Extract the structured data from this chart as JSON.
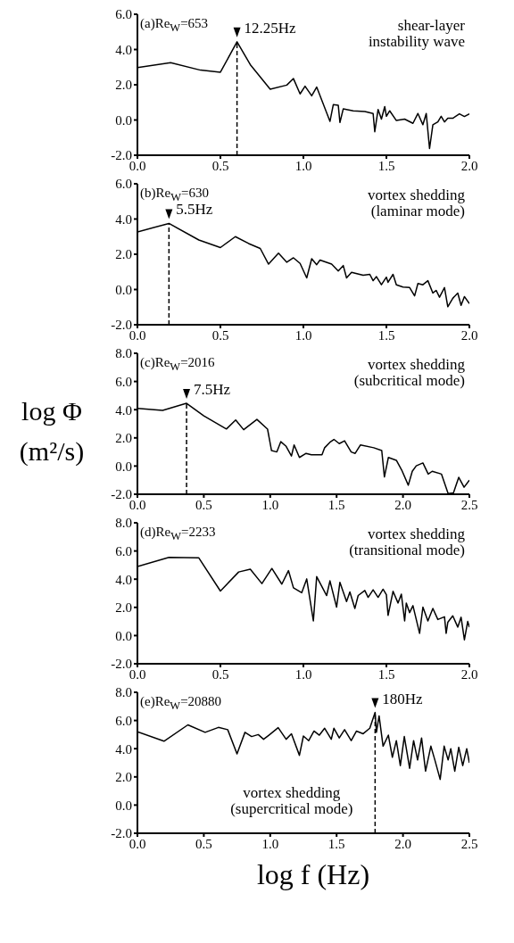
{
  "chart_data": [
    {
      "type": "line",
      "annotations": [
        "(a)Re$_{W}$=653",
        "shear-layer\ninstability wave",
        {
          "text": "12.25Hz",
          "x": 0.6,
          "y": 4.44
        }
      ],
      "ref_lines": [
        {
          "axis": "x",
          "value": 0.6,
          "line_style": "dashed"
        }
      ],
      "xlim": [
        0,
        2
      ],
      "xticks": [
        {
          "value": 0,
          "label": "0.0"
        },
        {
          "value": 0.5,
          "label": "0.5"
        },
        {
          "value": 1,
          "label": "1.0"
        },
        {
          "value": 1.5,
          "label": "1.5"
        },
        {
          "value": 2,
          "label": "2.0"
        }
      ],
      "ylim": [
        -2,
        6
      ],
      "yticks": [
        {
          "value": -2,
          "label": "-2.0"
        },
        {
          "value": 0,
          "label": "0.0"
        },
        {
          "value": 2,
          "label": "2.0"
        },
        {
          "value": 4,
          "label": "4.0"
        },
        {
          "value": 6,
          "label": "6.0"
        }
      ],
      "series": [
        {
          "color": "#000000",
          "x": [
            0,
            0.2,
            0.38,
            0.5,
            0.6,
            0.68,
            0.8,
            0.9,
            0.94,
            0.98,
            1.01,
            1.05,
            1.08,
            1.16,
            1.18,
            1.21,
            1.22,
            1.24,
            1.3,
            1.37,
            1.42,
            1.43,
            1.45,
            1.47,
            1.49,
            1.5,
            1.52,
            1.56,
            1.61,
            1.66,
            1.69,
            1.72,
            1.74,
            1.76,
            1.78,
            1.81,
            1.83,
            1.85,
            1.87,
            1.9,
            1.94,
            1.97,
            2.0
          ],
          "values": [
            2.98,
            3.25,
            2.83,
            2.71,
            4.44,
            3.14,
            1.75,
            1.98,
            2.35,
            1.48,
            1.92,
            1.37,
            1.87,
            -0.08,
            0.87,
            0.84,
            -0.14,
            0.63,
            0.52,
            0.48,
            0.37,
            -0.67,
            0.6,
            0.05,
            0.76,
            0.21,
            0.52,
            -0.03,
            0.05,
            -0.19,
            0.37,
            -0.27,
            0.37,
            -1.62,
            -0.27,
            -0.11,
            0.21,
            -0.11,
            0.1,
            0.1,
            0.35,
            0.2,
            0.35
          ]
        }
      ]
    },
    {
      "type": "line",
      "annotations": [
        "(b)Re$_{W}$=630",
        "vortex shedding\n(laminar mode)",
        {
          "text": "5.5Hz",
          "x": 0.19,
          "y": 3.75
        }
      ],
      "ref_lines": [
        {
          "axis": "x",
          "value": 0.19,
          "line_style": "dashed"
        }
      ],
      "xlim": [
        0,
        2
      ],
      "xticks": [
        {
          "value": 0,
          "label": "0.0"
        },
        {
          "value": 0.5,
          "label": "0.5"
        },
        {
          "value": 1,
          "label": "1.0"
        },
        {
          "value": 1.5,
          "label": "1.5"
        },
        {
          "value": 2,
          "label": "2.0"
        }
      ],
      "ylim": [
        -2,
        6
      ],
      "yticks": [
        {
          "value": -2,
          "label": "-2.0"
        },
        {
          "value": 0,
          "label": "0.0"
        },
        {
          "value": 2,
          "label": "2.0"
        },
        {
          "value": 4,
          "label": "4.0"
        },
        {
          "value": 6,
          "label": "6.0"
        }
      ],
      "series": [
        {
          "color": "#000000",
          "x": [
            0,
            0.19,
            0.37,
            0.5,
            0.59,
            0.67,
            0.74,
            0.79,
            0.85,
            0.9,
            0.94,
            0.98,
            1.02,
            1.05,
            1.08,
            1.1,
            1.17,
            1.21,
            1.24,
            1.26,
            1.29,
            1.36,
            1.4,
            1.42,
            1.44,
            1.47,
            1.5,
            1.51,
            1.54,
            1.56,
            1.6,
            1.64,
            1.67,
            1.69,
            1.72,
            1.75,
            1.78,
            1.8,
            1.82,
            1.85,
            1.87,
            1.9,
            1.93,
            1.95,
            1.97,
            2.0
          ],
          "values": [
            3.27,
            3.75,
            2.81,
            2.38,
            3.0,
            2.61,
            2.33,
            1.44,
            2.06,
            1.55,
            1.8,
            1.48,
            0.66,
            1.75,
            1.41,
            1.67,
            1.44,
            1.05,
            1.36,
            0.66,
            0.97,
            0.81,
            0.86,
            0.5,
            0.73,
            0.27,
            0.7,
            0.41,
            0.86,
            0.27,
            0.14,
            0.11,
            -0.36,
            0.34,
            0.27,
            0.5,
            -0.2,
            -0.05,
            -0.44,
            0.11,
            -0.98,
            -0.5,
            -0.2,
            -0.9,
            -0.4,
            -0.8
          ]
        }
      ]
    },
    {
      "type": "line",
      "ylabel": "log Φ\n(m²/s)",
      "annotations": [
        "(c)Re$_{W}$=2016",
        "vortex shedding\n(subcritical mode)",
        {
          "text": "7.5Hz",
          "x": 0.37,
          "y": 4.45
        }
      ],
      "ref_lines": [
        {
          "axis": "x",
          "value": 0.37,
          "line_style": "dashed"
        }
      ],
      "xlim": [
        0,
        2.5
      ],
      "xticks": [
        {
          "value": 0,
          "label": "0.0"
        },
        {
          "value": 0.5,
          "label": "0.5"
        },
        {
          "value": 1,
          "label": "1.0"
        },
        {
          "value": 1.5,
          "label": "1.5"
        },
        {
          "value": 2,
          "label": "2.0"
        },
        {
          "value": 2.5,
          "label": "2.5"
        }
      ],
      "ylim": [
        -2,
        8
      ],
      "yticks": [
        {
          "value": -2,
          "label": "-2.0"
        },
        {
          "value": 0,
          "label": "0.0"
        },
        {
          "value": 2,
          "label": "2.0"
        },
        {
          "value": 4,
          "label": "4.0"
        },
        {
          "value": 6,
          "label": "6.0"
        },
        {
          "value": 8,
          "label": "8.0"
        }
      ],
      "series": [
        {
          "color": "#000000",
          "x": [
            0,
            0.19,
            0.37,
            0.5,
            0.67,
            0.74,
            0.8,
            0.9,
            0.98,
            1.01,
            1.05,
            1.08,
            1.12,
            1.16,
            1.18,
            1.22,
            1.27,
            1.31,
            1.39,
            1.41,
            1.45,
            1.48,
            1.52,
            1.56,
            1.61,
            1.64,
            1.68,
            1.78,
            1.84,
            1.86,
            1.89,
            1.95,
            1.99,
            2.04,
            2.07,
            2.1,
            2.15,
            2.19,
            2.22,
            2.29,
            2.34,
            2.38,
            2.42,
            2.46,
            2.5
          ],
          "values": [
            4.09,
            3.95,
            4.45,
            3.56,
            2.63,
            3.27,
            2.58,
            3.31,
            2.62,
            1.1,
            1.0,
            1.73,
            1.4,
            0.71,
            1.5,
            0.61,
            0.9,
            0.8,
            0.8,
            1.3,
            1.69,
            1.89,
            1.59,
            1.79,
            1.0,
            0.9,
            1.5,
            1.3,
            1.1,
            -0.77,
            0.61,
            0.41,
            -0.28,
            -1.36,
            -0.37,
            0.02,
            0.22,
            -0.57,
            -0.37,
            -0.57,
            -1.95,
            -1.9,
            -0.8,
            -1.5,
            -1.0
          ]
        }
      ]
    },
    {
      "type": "line",
      "annotations": [
        "(d)Re$_{W}$=2233",
        "vortex shedding\n(transitional mode)"
      ],
      "xlim": [
        0,
        2
      ],
      "xticks": [
        {
          "value": 0,
          "label": "0.0"
        },
        {
          "value": 0.5,
          "label": "0.5"
        },
        {
          "value": 1,
          "label": "1.0"
        },
        {
          "value": 1.5,
          "label": "1.5"
        },
        {
          "value": 2,
          "label": "2.0"
        }
      ],
      "ylim": [
        -2,
        8
      ],
      "yticks": [
        {
          "value": -2,
          "label": "-2.0"
        },
        {
          "value": 0,
          "label": "0.0"
        },
        {
          "value": 2,
          "label": "2.0"
        },
        {
          "value": 4,
          "label": "4.0"
        },
        {
          "value": 6,
          "label": "6.0"
        },
        {
          "value": 8,
          "label": "8.0"
        }
      ],
      "series": [
        {
          "color": "#000000",
          "x": [
            0,
            0.19,
            0.37,
            0.5,
            0.61,
            0.68,
            0.75,
            0.81,
            0.87,
            0.91,
            0.94,
            0.99,
            1.02,
            1.06,
            1.08,
            1.14,
            1.16,
            1.2,
            1.22,
            1.26,
            1.28,
            1.31,
            1.33,
            1.37,
            1.39,
            1.42,
            1.45,
            1.48,
            1.5,
            1.51,
            1.54,
            1.57,
            1.59,
            1.61,
            1.62,
            1.64,
            1.66,
            1.7,
            1.72,
            1.75,
            1.78,
            1.81,
            1.85,
            1.86,
            1.87,
            1.9,
            1.93,
            1.95,
            1.97,
            1.99,
            2.0
          ],
          "values": [
            4.9,
            5.55,
            5.51,
            3.16,
            4.51,
            4.71,
            3.69,
            4.76,
            3.65,
            4.61,
            3.39,
            3.04,
            4.02,
            1.04,
            4.18,
            2.84,
            3.88,
            2.02,
            3.78,
            2.41,
            3.1,
            1.92,
            2.84,
            3.2,
            2.71,
            3.25,
            2.71,
            3.29,
            2.9,
            1.43,
            3.14,
            2.31,
            2.94,
            1.04,
            2.31,
            1.63,
            2.12,
            0.16,
            2.02,
            1.04,
            1.92,
            1.14,
            1.33,
            0.16,
            0.94,
            1.4,
            0.6,
            1.3,
            -0.3,
            1.0,
            0.6
          ]
        }
      ]
    },
    {
      "type": "line",
      "xlabel": "log f (Hz)",
      "annotations": [
        "(e)Re$_{W}$=20880",
        "vortex shedding\n(supercritical mode)",
        {
          "text": "180Hz",
          "x": 1.79,
          "y": 6.57
        }
      ],
      "ref_lines": [
        {
          "axis": "x",
          "value": 1.79,
          "line_style": "dashed"
        }
      ],
      "xlim": [
        0,
        2.5
      ],
      "xticks": [
        {
          "value": 0,
          "label": "0.0"
        },
        {
          "value": 0.5,
          "label": "0.5"
        },
        {
          "value": 1,
          "label": "1.0"
        },
        {
          "value": 1.5,
          "label": "1.5"
        },
        {
          "value": 2,
          "label": "2.0"
        },
        {
          "value": 2.5,
          "label": "2.5"
        }
      ],
      "ylim": [
        -2,
        8
      ],
      "yticks": [
        {
          "value": -2,
          "label": "-2.0"
        },
        {
          "value": 0,
          "label": "0.0"
        },
        {
          "value": 2,
          "label": "2.0"
        },
        {
          "value": 4,
          "label": "4.0"
        },
        {
          "value": 6,
          "label": "6.0"
        },
        {
          "value": 8,
          "label": "8.0"
        }
      ],
      "series": [
        {
          "color": "#000000",
          "x": [
            0,
            0.2,
            0.38,
            0.51,
            0.61,
            0.68,
            0.75,
            0.81,
            0.86,
            0.91,
            0.95,
            0.99,
            1.06,
            1.12,
            1.16,
            1.22,
            1.25,
            1.29,
            1.33,
            1.37,
            1.41,
            1.46,
            1.48,
            1.52,
            1.56,
            1.61,
            1.65,
            1.7,
            1.75,
            1.79,
            1.8,
            1.82,
            1.85,
            1.89,
            1.92,
            1.95,
            1.98,
            2.01,
            2.05,
            2.08,
            2.11,
            2.14,
            2.17,
            2.21,
            2.24,
            2.28,
            2.31,
            2.34,
            2.36,
            2.39,
            2.42,
            2.45,
            2.48,
            2.5
          ],
          "values": [
            5.2,
            4.53,
            5.69,
            5.16,
            5.51,
            5.35,
            3.63,
            5.16,
            4.86,
            5.0,
            4.67,
            4.96,
            5.49,
            4.67,
            5.06,
            3.53,
            4.9,
            4.57,
            5.25,
            4.96,
            5.45,
            4.67,
            5.45,
            4.76,
            5.35,
            4.57,
            5.25,
            5.06,
            5.45,
            6.57,
            5.16,
            6.33,
            4.18,
            4.96,
            3.39,
            4.57,
            2.8,
            4.86,
            2.61,
            4.57,
            3.2,
            4.76,
            2.41,
            4.18,
            3.2,
            1.82,
            4.18,
            3.2,
            4.0,
            2.4,
            4.1,
            2.8,
            4.0,
            3.0
          ]
        }
      ]
    }
  ]
}
